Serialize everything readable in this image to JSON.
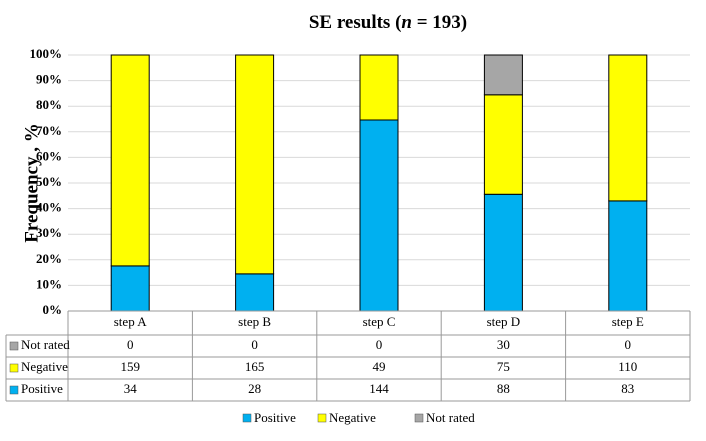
{
  "chart_data": {
    "type": "bar",
    "stacking": "percent",
    "title_parts": [
      "SE results (",
      "n",
      " = 193)"
    ],
    "y_label": "Frequency , %",
    "categories": [
      "step A",
      "step B",
      "step C",
      "step D",
      "step E"
    ],
    "series": [
      {
        "name": "Positive",
        "color": "#00b0f0",
        "values": [
          34,
          28,
          144,
          88,
          83
        ]
      },
      {
        "name": "Negative",
        "color": "#ffff00",
        "values": [
          159,
          165,
          49,
          75,
          110
        ]
      },
      {
        "name": "Not rated",
        "color": "#a6a6a6",
        "values": [
          0,
          0,
          0,
          30,
          0
        ]
      }
    ],
    "ylim": [
      0,
      100
    ],
    "yticks": [
      {
        "value": 0,
        "label": "0%"
      },
      {
        "value": 10,
        "label": "10%"
      },
      {
        "value": 20,
        "label": "20%"
      },
      {
        "value": 30,
        "label": "30%"
      },
      {
        "value": 40,
        "label": "40%"
      },
      {
        "value": 50,
        "label": "50%"
      },
      {
        "value": 60,
        "label": "60%"
      },
      {
        "value": 70,
        "label": "70%"
      },
      {
        "value": 80,
        "label": "80%"
      },
      {
        "value": 90,
        "label": "90%"
      },
      {
        "value": 100,
        "label": "100%"
      }
    ],
    "grid": true,
    "data_table": true,
    "legend": "bottom"
  }
}
